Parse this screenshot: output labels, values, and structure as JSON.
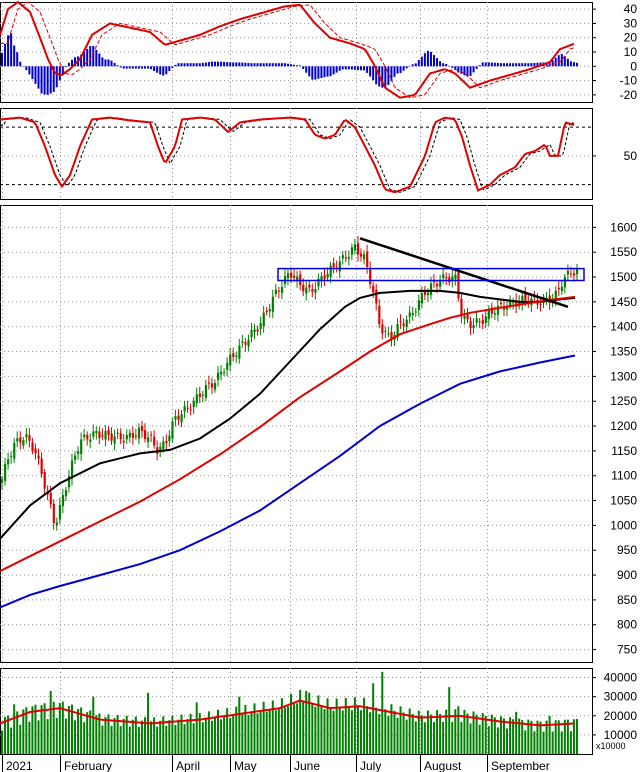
{
  "chart_data": [
    {
      "type": "line",
      "panel": "macd",
      "ylim": [
        -25,
        45
      ],
      "yticks": [
        40,
        30,
        20,
        10,
        0,
        -10,
        -20
      ],
      "grid": true,
      "series": [],
      "colors": {
        "line": "#e00000",
        "signal": "#e00000",
        "hist": "#0000d0"
      }
    },
    {
      "type": "line",
      "panel": "stochastic",
      "ylim": [
        5,
        100
      ],
      "yticks": [
        50
      ],
      "reference_lines": [
        80,
        20
      ],
      "grid": true,
      "series": [],
      "colors": {
        "k": "#e00000",
        "d": "#000000"
      }
    },
    {
      "type": "candlestick",
      "panel": "price",
      "ylim": [
        725,
        1645
      ],
      "yticks": [
        1600,
        1550,
        1500,
        1450,
        1400,
        1350,
        1300,
        1250,
        1200,
        1150,
        1100,
        1050,
        1000,
        950,
        900,
        850,
        800,
        750
      ],
      "grid": true,
      "x_month_labels": [
        "2021",
        "February",
        "April",
        "May",
        "June",
        "July",
        "August",
        "September"
      ],
      "moving_averages": [
        {
          "color": "#000000",
          "points": [
            [
              0,
              973
            ],
            [
              30,
              1040
            ],
            [
              60,
              1085
            ],
            [
              100,
              1125
            ],
            [
              140,
              1145
            ],
            [
              170,
              1152
            ],
            [
              200,
              1175
            ],
            [
              230,
              1215
            ],
            [
              260,
              1265
            ],
            [
              290,
              1330
            ],
            [
              320,
              1395
            ],
            [
              345,
              1440
            ],
            [
              360,
              1458
            ],
            [
              380,
              1468
            ],
            [
              410,
              1472
            ],
            [
              440,
              1472
            ],
            [
              460,
              1468
            ],
            [
              480,
              1460
            ],
            [
              500,
              1455
            ],
            [
              520,
              1450
            ],
            [
              540,
              1450
            ],
            [
              560,
              1455
            ],
            [
              575,
              1458
            ]
          ]
        },
        {
          "color": "#e00000",
          "points": [
            [
              0,
              908
            ],
            [
              30,
              938
            ],
            [
              60,
              968
            ],
            [
              100,
              1008
            ],
            [
              140,
              1048
            ],
            [
              180,
              1093
            ],
            [
              220,
              1143
            ],
            [
              260,
              1198
            ],
            [
              300,
              1258
            ],
            [
              340,
              1310
            ],
            [
              370,
              1350
            ],
            [
              400,
              1385
            ],
            [
              430,
              1405
            ],
            [
              450,
              1418
            ],
            [
              470,
              1428
            ],
            [
              500,
              1438
            ],
            [
              530,
              1448
            ],
            [
              555,
              1455
            ],
            [
              575,
              1460
            ]
          ]
        },
        {
          "color": "#0000d0",
          "points": [
            [
              0,
              835
            ],
            [
              30,
              860
            ],
            [
              60,
              878
            ],
            [
              100,
              900
            ],
            [
              140,
              922
            ],
            [
              180,
              950
            ],
            [
              220,
              988
            ],
            [
              260,
              1030
            ],
            [
              300,
              1085
            ],
            [
              340,
              1140
            ],
            [
              380,
              1200
            ],
            [
              420,
              1245
            ],
            [
              460,
              1285
            ],
            [
              500,
              1310
            ],
            [
              540,
              1328
            ],
            [
              575,
              1342
            ]
          ]
        }
      ],
      "trendlines": [
        {
          "color": "#000000",
          "points": [
            [
              360,
              1578
            ],
            [
              568,
              1440
            ]
          ]
        }
      ],
      "resistance_box": {
        "color": "#0000e0",
        "top": 1517,
        "bottom": 1493
      },
      "candles": {
        "bull_color": "#008000",
        "bear_color": "#e00000",
        "count": 190
      },
      "series": []
    },
    {
      "type": "bar",
      "panel": "volume",
      "ylim": [
        0,
        45000
      ],
      "yticks": [
        40000,
        30000,
        20000,
        10000
      ],
      "unit_label": "x10000",
      "grid": true,
      "bar_color": "#008000",
      "ma_color": "#e00000",
      "series": []
    }
  ]
}
